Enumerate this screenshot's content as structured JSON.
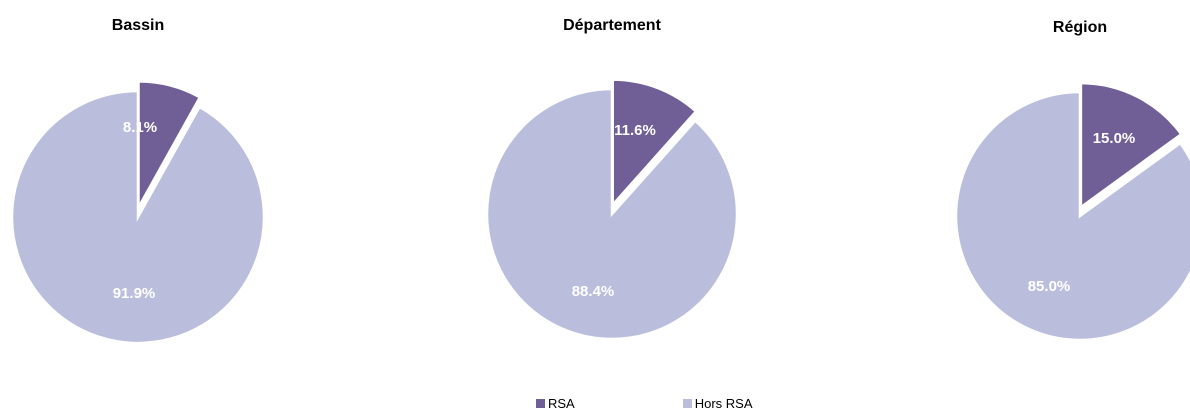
{
  "chart_data": [
    {
      "type": "pie",
      "title": "Bassin",
      "slices": [
        {
          "name": "RSA",
          "value": 8.1,
          "label": "8.1%"
        },
        {
          "name": "Hors RSA",
          "value": 91.9,
          "label": "91.9%"
        }
      ],
      "legend": "bottom"
    },
    {
      "type": "pie",
      "title": "Département",
      "slices": [
        {
          "name": "RSA",
          "value": 11.6,
          "label": "11.6%"
        },
        {
          "name": "Hors RSA",
          "value": 88.4,
          "label": "88.4%"
        }
      ],
      "legend": "bottom"
    },
    {
      "type": "pie",
      "title": "Région",
      "slices": [
        {
          "name": "RSA",
          "value": 15.0,
          "label": "15.0%"
        },
        {
          "name": "Hors RSA",
          "value": 85.0,
          "label": "85.0%"
        }
      ],
      "legend": "bottom"
    }
  ],
  "legend": {
    "items": [
      {
        "name": "RSA",
        "color": "#705e96"
      },
      {
        "name": "Hors RSA",
        "color": "#bbbddd"
      }
    ]
  },
  "colors": {
    "rsa": "#705e96",
    "hors_rsa": "#bbbddd"
  }
}
